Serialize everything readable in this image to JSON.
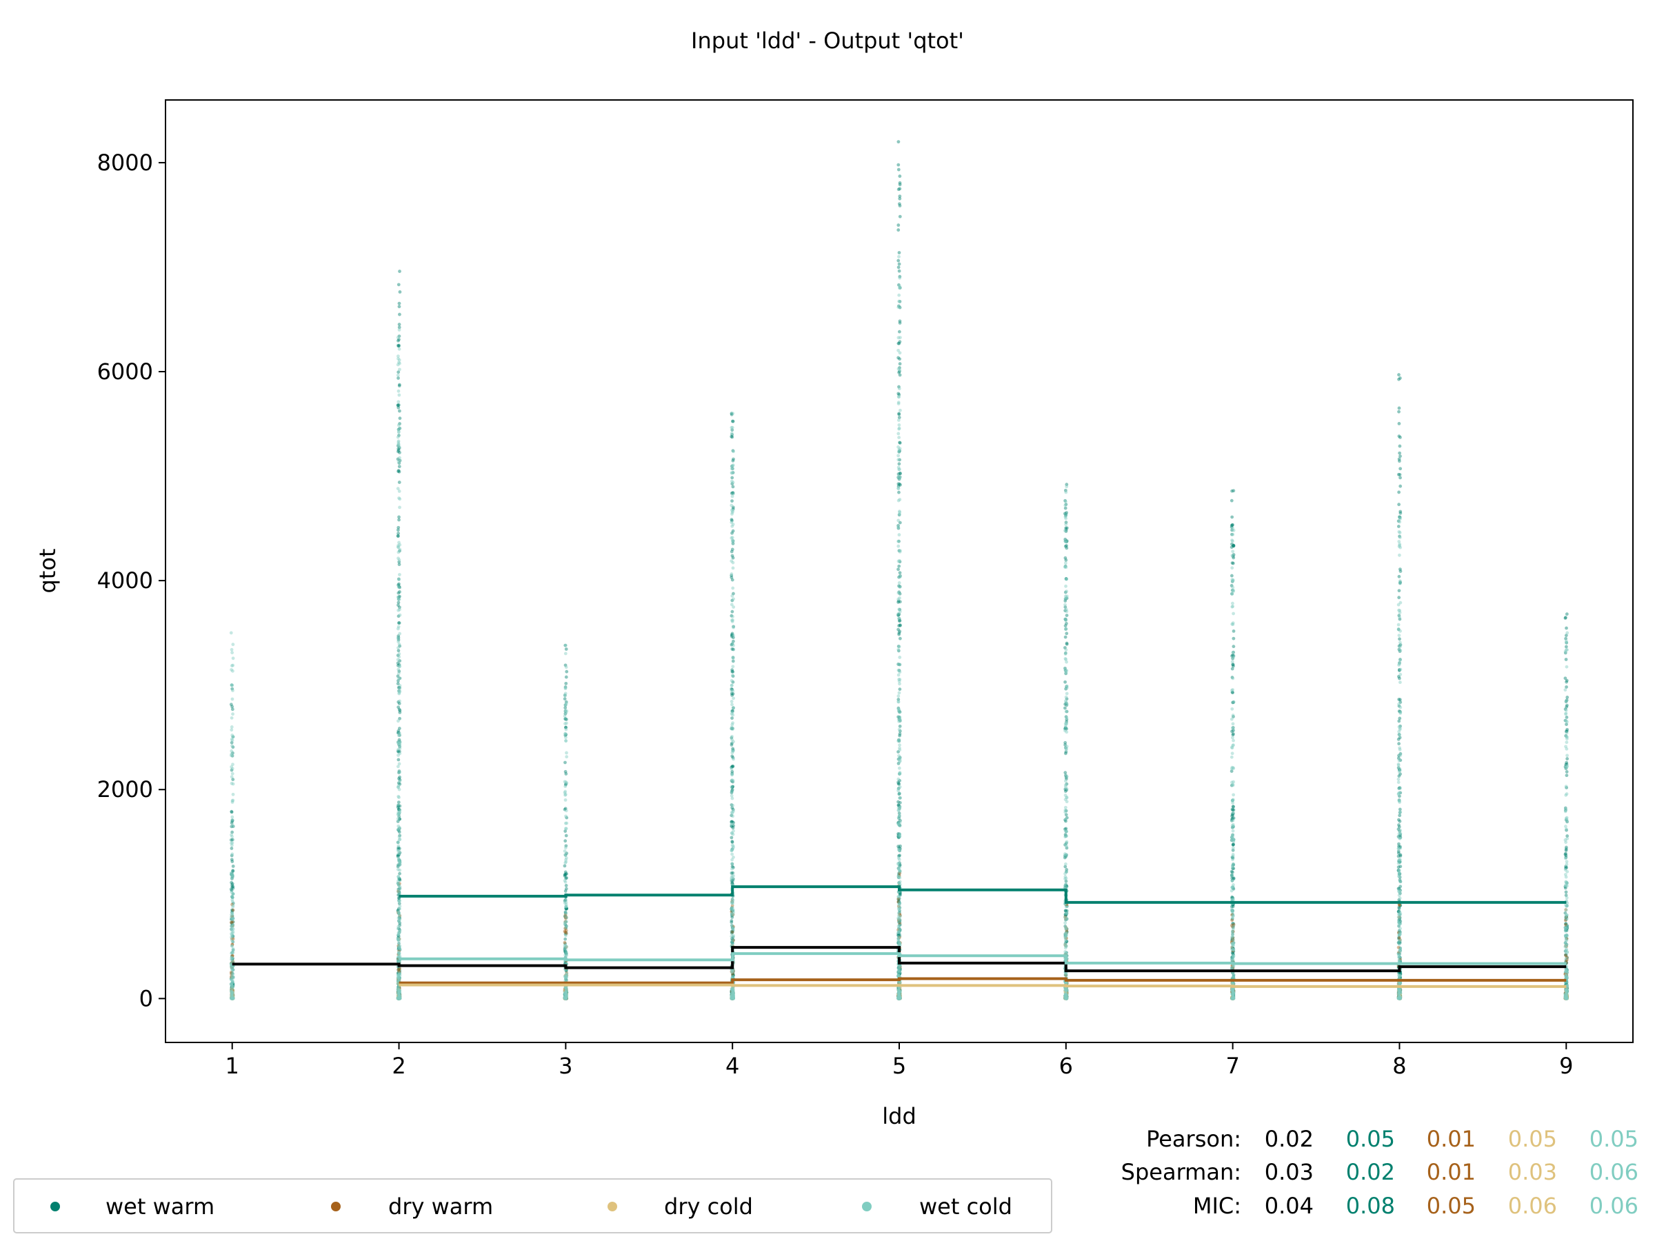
{
  "chart_data": {
    "type": "scatter",
    "title": "Input 'ldd' - Output 'qtot'",
    "xlabel": "ldd",
    "ylabel": "qtot",
    "xlim": [
      0.6,
      9.4
    ],
    "ylim": [
      -420,
      8600
    ],
    "xticks": [
      1,
      2,
      3,
      4,
      5,
      6,
      7,
      8,
      9
    ],
    "yticks": [
      0,
      2000,
      4000,
      6000,
      8000
    ],
    "legend_position": "bottom-left",
    "series": [
      {
        "name": "wet warm",
        "color": "#01806e",
        "point_max": [
          3000,
          6960,
          3380,
          5600,
          8200,
          4920,
          4860,
          5970,
          3680
        ],
        "step_line": [
          null,
          980,
          990,
          1070,
          1040,
          920,
          920,
          920,
          null
        ]
      },
      {
        "name": "dry warm",
        "color": "#a6611a",
        "point_max": [
          900,
          1100,
          800,
          1000,
          1200,
          900,
          800,
          900,
          850
        ],
        "step_line": [
          null,
          150,
          150,
          180,
          190,
          175,
          175,
          175,
          null
        ]
      },
      {
        "name": "dry cold",
        "color": "#dfc27d",
        "point_max": [
          100,
          150,
          150,
          150,
          150,
          150,
          150,
          150,
          100
        ],
        "step_line": [
          null,
          130,
          130,
          125,
          125,
          120,
          115,
          115,
          null
        ]
      },
      {
        "name": "wet cold",
        "color": "#80cdc1",
        "point_max": [
          3500,
          6400,
          3380,
          5600,
          7100,
          4900,
          4500,
          4600,
          3500
        ],
        "step_line": [
          null,
          380,
          370,
          430,
          410,
          340,
          335,
          335,
          null
        ]
      }
    ],
    "overall_step_line": [
      330,
      315,
      295,
      490,
      340,
      265,
      265,
      305,
      305
    ],
    "overall_color": "#000000",
    "correlations": {
      "rows": [
        {
          "label": "Pearson:",
          "values": [
            "0.02",
            "0.05",
            "0.01",
            "0.05",
            "0.05"
          ]
        },
        {
          "label": "Spearman:",
          "values": [
            "0.03",
            "0.02",
            "0.01",
            "0.03",
            "0.06"
          ]
        },
        {
          "label": "MIC:",
          "values": [
            "0.04",
            "0.08",
            "0.05",
            "0.06",
            "0.06"
          ]
        }
      ],
      "value_colors": [
        "#000000",
        "#01806e",
        "#a6611a",
        "#dfc27d",
        "#80cdc1"
      ]
    }
  }
}
